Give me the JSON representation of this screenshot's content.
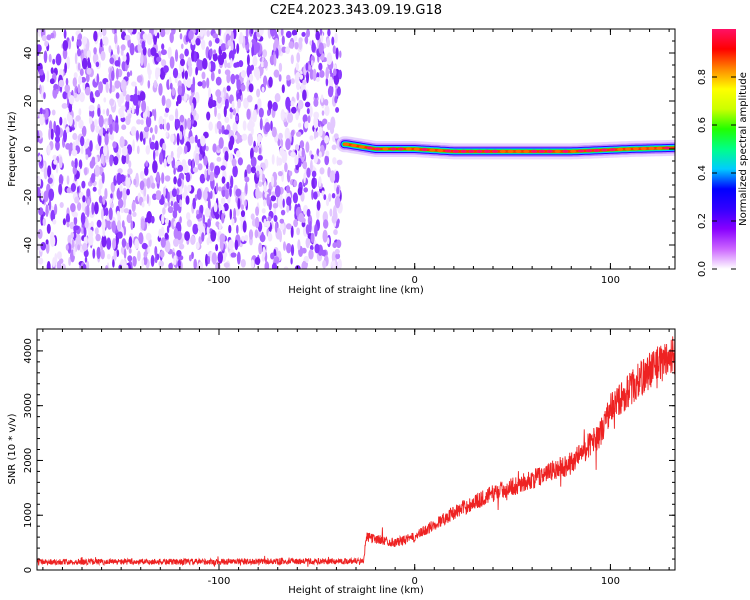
{
  "title": "C2E4.2023.343.09.19.G18",
  "chart_data": [
    {
      "type": "heatmap",
      "xlabel": "Height of straight line (km)",
      "ylabel": "Frequency (Hz)",
      "xlim": [
        -193,
        133
      ],
      "ylim": [
        -50,
        50
      ],
      "x_ticks": [
        -100,
        0,
        100
      ],
      "y_ticks": [
        -40,
        -20,
        0,
        20,
        40
      ],
      "colorbar": {
        "label": "Normalized spectral amplitude",
        "range": [
          0,
          1
        ],
        "ticks": [
          "0.0",
          "0.2",
          "0.4",
          "0.6",
          "0.8"
        ],
        "colors": [
          "#ffffff",
          "#cc66ff",
          "#8800ff",
          "#3300ff",
          "#0000ff",
          "#00ccff",
          "#00ff88",
          "#22ff00",
          "#ccff00",
          "#ffff00",
          "#ff8800",
          "#ff0000",
          "#ff1166"
        ]
      },
      "regions": [
        {
          "x_range": [
            -193,
            -38
          ],
          "freq_range": [
            -50,
            50
          ],
          "description": "broadband low-amplitude noise",
          "amplitude": [
            0.02,
            0.25
          ]
        },
        {
          "x_range": [
            -38,
            133
          ],
          "freq_center": [
            2,
            0,
            0,
            -1,
            -1,
            -1,
            0,
            0.5
          ],
          "x_at": [
            -35,
            -20,
            0,
            20,
            50,
            80,
            110,
            133
          ],
          "peak_amplitude": 1.0
        }
      ]
    },
    {
      "type": "line",
      "xlabel": "Height of straight line (km)",
      "ylabel": "SNR (10 * v/v)",
      "xlim": [
        -193,
        133
      ],
      "ylim": [
        0,
        4400
      ],
      "x_ticks": [
        -100,
        0,
        100
      ],
      "y_ticks": [
        0,
        1000,
        2000,
        3000,
        4000
      ],
      "color": "#ee2222",
      "trend": {
        "x": [
          -193,
          -100,
          -40,
          -26,
          -25,
          -10,
          0,
          20,
          40,
          60,
          80,
          95,
          100,
          110,
          120,
          133
        ],
        "y": [
          150,
          150,
          160,
          170,
          600,
          500,
          600,
          1050,
          1400,
          1650,
          1950,
          2500,
          2950,
          3300,
          3650,
          3950
        ]
      }
    }
  ]
}
